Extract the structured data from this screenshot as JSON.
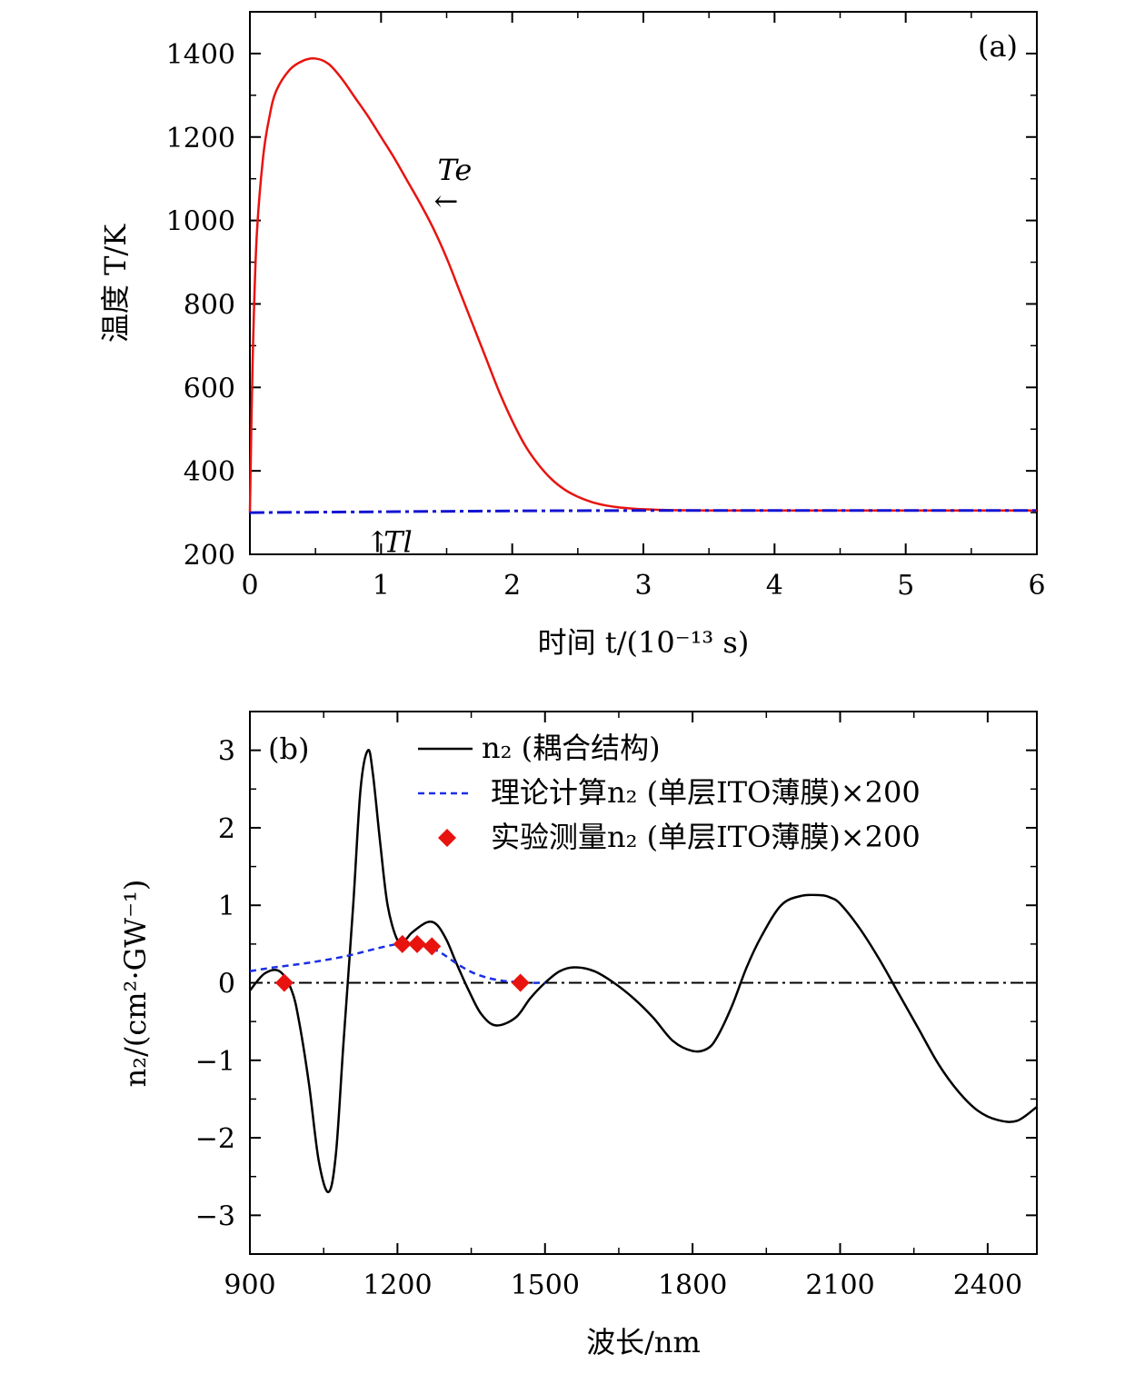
{
  "chart_data": [
    {
      "type": "line",
      "panel_label": "(a)",
      "xlabel": "时间 t/(10⁻¹³ s)",
      "ylabel": "温度 T/K",
      "xlim": [
        0,
        6
      ],
      "ylim": [
        200,
        1500
      ],
      "xticks": [
        0,
        1,
        2,
        3,
        4,
        5,
        6
      ],
      "yticks": [
        200,
        400,
        600,
        800,
        1000,
        1200,
        1400
      ],
      "grid": false,
      "annotations": [
        {
          "text": "Te",
          "arrow": "←",
          "x": 1.5,
          "y": 1040
        },
        {
          "text": "Tl",
          "arrow": "↑",
          "x": 0.95,
          "y": 240
        }
      ],
      "series": [
        {
          "name": "Te",
          "color": "#e8130f",
          "style": "solid",
          "x": [
            0,
            0.02,
            0.05,
            0.1,
            0.15,
            0.2,
            0.3,
            0.4,
            0.5,
            0.6,
            0.7,
            0.8,
            0.9,
            1.0,
            1.1,
            1.2,
            1.3,
            1.4,
            1.5,
            1.6,
            1.7,
            1.8,
            1.9,
            2.0,
            2.1,
            2.2,
            2.3,
            2.4,
            2.5,
            2.6,
            2.7,
            2.8,
            2.9,
            3.0,
            3.2,
            3.5,
            4.0,
            4.5,
            5.0,
            5.5,
            6.0
          ],
          "y": [
            300,
            650,
            950,
            1150,
            1250,
            1310,
            1360,
            1382,
            1388,
            1375,
            1340,
            1295,
            1250,
            1200,
            1150,
            1095,
            1040,
            980,
            910,
            830,
            750,
            670,
            590,
            520,
            460,
            415,
            380,
            355,
            338,
            326,
            318,
            313,
            310,
            308,
            306,
            305,
            305,
            305,
            305,
            305,
            305
          ]
        },
        {
          "name": "Tl",
          "color": "#1414d2",
          "style": "dashdot",
          "x": [
            0,
            1,
            2,
            3,
            4,
            5,
            6
          ],
          "y": [
            300,
            302,
            304,
            305,
            305,
            305,
            305
          ]
        }
      ]
    },
    {
      "type": "line",
      "panel_label": "(b)",
      "xlabel": "波长/nm",
      "ylabel": "n₂/(cm²·GW⁻¹)",
      "xlim": [
        900,
        2500
      ],
      "ylim": [
        -3.5,
        3.5
      ],
      "xticks": [
        900,
        1200,
        1500,
        1800,
        2100,
        2400
      ],
      "yticks": [
        -3,
        -2,
        -1,
        0,
        1,
        2,
        3
      ],
      "grid": false,
      "legend": "top-right",
      "zero_line": {
        "y": 0,
        "style": "dashdot",
        "color": "#000000"
      },
      "series": [
        {
          "name": "n₂ (耦合结构)",
          "color": "#000000",
          "style": "solid",
          "x": [
            900,
            930,
            960,
            985,
            1000,
            1020,
            1040,
            1060,
            1075,
            1090,
            1110,
            1125,
            1140,
            1150,
            1165,
            1180,
            1200,
            1215,
            1230,
            1260,
            1280,
            1300,
            1320,
            1345,
            1370,
            1400,
            1440,
            1470,
            1500,
            1530,
            1560,
            1600,
            1640,
            1680,
            1720,
            1760,
            1800,
            1830,
            1850,
            1880,
            1910,
            1940,
            1980,
            2020,
            2060,
            2080,
            2100,
            2140,
            2180,
            2220,
            2260,
            2300,
            2340,
            2380,
            2420,
            2460,
            2500
          ],
          "y": [
            -0.1,
            0.12,
            0.15,
            -0.1,
            -0.5,
            -1.3,
            -2.3,
            -2.7,
            -2.2,
            -0.8,
            1.0,
            2.5,
            3.0,
            2.7,
            1.8,
            1.0,
            0.55,
            0.55,
            0.65,
            0.78,
            0.75,
            0.55,
            0.25,
            -0.1,
            -0.4,
            -0.55,
            -0.45,
            -0.2,
            0.0,
            0.15,
            0.2,
            0.15,
            0.0,
            -0.2,
            -0.45,
            -0.75,
            -0.88,
            -0.85,
            -0.7,
            -0.3,
            0.2,
            0.6,
            1.0,
            1.12,
            1.13,
            1.1,
            1.02,
            0.7,
            0.3,
            -0.15,
            -0.6,
            -1.05,
            -1.4,
            -1.65,
            -1.77,
            -1.78,
            -1.6
          ]
        },
        {
          "name": "理论计算n₂ (单层ITO薄膜)×200",
          "color": "#1a2ee6",
          "style": "dashed",
          "x": [
            900,
            950,
            1000,
            1050,
            1100,
            1150,
            1200,
            1230,
            1260,
            1290,
            1320,
            1350,
            1380,
            1410,
            1440,
            1470,
            1500
          ],
          "y": [
            0.15,
            0.2,
            0.24,
            0.29,
            0.35,
            0.43,
            0.5,
            0.5,
            0.47,
            0.38,
            0.25,
            0.14,
            0.07,
            0.03,
            0.01,
            0.0,
            0.0
          ]
        },
        {
          "name": "实验测量n₂ (单层ITO薄膜)×200",
          "color": "#e8130f",
          "style": "diamond",
          "x": [
            970,
            1210,
            1240,
            1270,
            1450
          ],
          "y": [
            0.0,
            0.5,
            0.5,
            0.47,
            0.0
          ]
        }
      ]
    }
  ]
}
